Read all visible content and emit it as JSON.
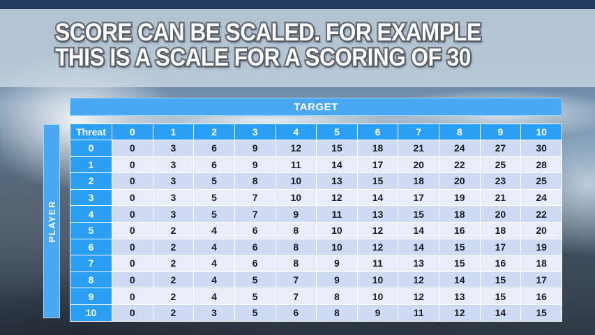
{
  "slide": {
    "title_line1": "SCORE CAN BE SCALED. FOR EXAMPLE",
    "title_line2": "THIS IS A SCALE FOR A SCORING OF 30"
  },
  "table": {
    "target_label": "TARGET",
    "player_label": "PLAYER",
    "corner_label": "Threat",
    "columns": [
      "0",
      "1",
      "2",
      "3",
      "4",
      "5",
      "6",
      "7",
      "8",
      "9",
      "10"
    ],
    "rows": [
      {
        "header": "0",
        "values": [
          0,
          3,
          6,
          9,
          12,
          15,
          18,
          21,
          24,
          27,
          30
        ]
      },
      {
        "header": "1",
        "values": [
          0,
          3,
          6,
          9,
          11,
          14,
          17,
          20,
          22,
          25,
          28
        ]
      },
      {
        "header": "2",
        "values": [
          0,
          3,
          5,
          8,
          10,
          13,
          15,
          18,
          20,
          23,
          25
        ]
      },
      {
        "header": "3",
        "values": [
          0,
          3,
          5,
          7,
          10,
          12,
          14,
          17,
          19,
          21,
          24
        ]
      },
      {
        "header": "4",
        "values": [
          0,
          3,
          5,
          7,
          9,
          11,
          13,
          15,
          18,
          20,
          22
        ]
      },
      {
        "header": "5",
        "values": [
          0,
          2,
          4,
          6,
          8,
          10,
          12,
          14,
          16,
          18,
          20
        ]
      },
      {
        "header": "6",
        "values": [
          0,
          2,
          4,
          6,
          8,
          10,
          12,
          14,
          15,
          17,
          19
        ]
      },
      {
        "header": "7",
        "values": [
          0,
          2,
          4,
          6,
          8,
          9,
          11,
          13,
          15,
          16,
          18
        ]
      },
      {
        "header": "8",
        "values": [
          0,
          2,
          4,
          5,
          7,
          9,
          10,
          12,
          14,
          15,
          17
        ]
      },
      {
        "header": "9",
        "values": [
          0,
          2,
          4,
          5,
          7,
          8,
          10,
          12,
          13,
          15,
          16
        ]
      },
      {
        "header": "10",
        "values": [
          0,
          2,
          3,
          5,
          6,
          8,
          9,
          11,
          12,
          14,
          15
        ]
      }
    ]
  },
  "colors": {
    "accent_blue": "#2B9FF4",
    "bar_blue": "#4AA8F2",
    "row_even": "#CFDAF3",
    "row_odd": "#E9EDF9",
    "top_bar_navy": "#1F3A5C"
  }
}
